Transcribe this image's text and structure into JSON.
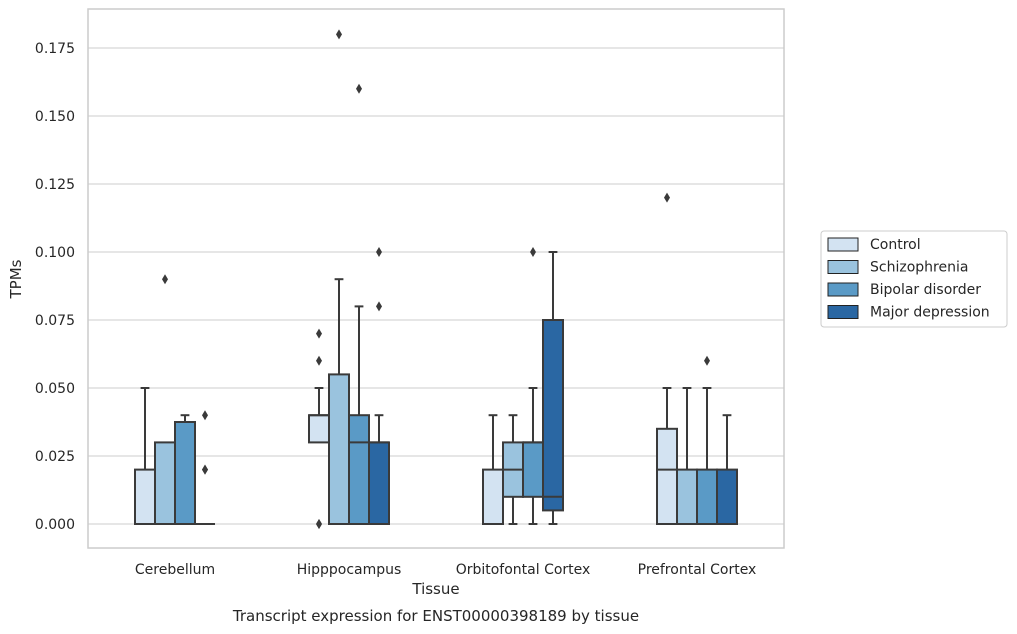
{
  "chart_data": {
    "type": "boxplot",
    "xlabel": "Tissue",
    "ylabel": "TPMs",
    "caption": "Transcript expression for ENST00000398189 by tissue",
    "ylim": [
      -0.0175,
      0.1925
    ],
    "yticks": [
      "0.000",
      "0.025",
      "0.050",
      "0.075",
      "0.100",
      "0.125",
      "0.150",
      "0.175"
    ],
    "ytick_values": [
      0,
      0.025,
      0.05,
      0.075,
      0.1,
      0.125,
      0.15,
      0.175
    ],
    "grid": "horizontal",
    "legend_position": "right",
    "categories": [
      "Cerebellum",
      "Hipppocampus",
      "Orbitofontal Cortex",
      "Prefrontal Cortex"
    ],
    "series": [
      {
        "name": "Control",
        "color": "#d3e3f2",
        "boxes": [
          {
            "whislo": 0,
            "q1": 0,
            "med": 0,
            "q3": 0.02,
            "whishi": 0.05,
            "fliers": []
          },
          {
            "whislo": 0.03,
            "q1": 0.03,
            "med": 0.04,
            "q3": 0.04,
            "whishi": 0.05,
            "fliers": [
              0.06,
              0.07,
              0,
              0
            ]
          },
          {
            "whislo": 0,
            "q1": 0,
            "med": 0,
            "q3": 0.02,
            "whishi": 0.04,
            "fliers": []
          },
          {
            "whislo": 0,
            "q1": 0,
            "med": 0.02,
            "q3": 0.035,
            "whishi": 0.05,
            "fliers": [
              0.12
            ]
          }
        ]
      },
      {
        "name": "Schizophrenia",
        "color": "#9ac3de",
        "boxes": [
          {
            "whislo": 0,
            "q1": 0,
            "med": 0,
            "q3": 0.03,
            "whishi": 0.03,
            "fliers": [
              0.09
            ]
          },
          {
            "whislo": 0,
            "q1": 0,
            "med": 0,
            "q3": 0.055,
            "whishi": 0.09,
            "fliers": [
              0.18
            ]
          },
          {
            "whislo": 0,
            "q1": 0.01,
            "med": 0.02,
            "q3": 0.03,
            "whishi": 0.04,
            "fliers": []
          },
          {
            "whislo": 0,
            "q1": 0,
            "med": 0,
            "q3": 0.02,
            "whishi": 0.05,
            "fliers": []
          }
        ]
      },
      {
        "name": "Bipolar disorder",
        "color": "#5a9ac6",
        "boxes": [
          {
            "whislo": 0,
            "q1": 0,
            "med": 0,
            "q3": 0.0375,
            "whishi": 0.04,
            "fliers": []
          },
          {
            "whislo": 0,
            "q1": 0,
            "med": 0.03,
            "q3": 0.04,
            "whishi": 0.08,
            "fliers": [
              0.16
            ]
          },
          {
            "whislo": 0,
            "q1": 0.01,
            "med": 0.03,
            "q3": 0.03,
            "whishi": 0.05,
            "fliers": [
              0.1
            ]
          },
          {
            "whislo": 0,
            "q1": 0,
            "med": 0,
            "q3": 0.02,
            "whishi": 0.05,
            "fliers": [
              0.06
            ]
          }
        ]
      },
      {
        "name": "Major depression",
        "color": "#2a67a3",
        "boxes": [
          {
            "whislo": 0,
            "q1": 0,
            "med": 0,
            "q3": 0,
            "whishi": 0,
            "fliers": [
              0.02,
              0.02,
              0.04
            ]
          },
          {
            "whislo": 0,
            "q1": 0,
            "med": 0.03,
            "q3": 0.03,
            "whishi": 0.04,
            "fliers": [
              0.08,
              0.1
            ]
          },
          {
            "whislo": 0,
            "q1": 0.005,
            "med": 0.01,
            "q3": 0.075,
            "whishi": 0.1,
            "fliers": []
          },
          {
            "whislo": 0,
            "q1": 0,
            "med": 0,
            "q3": 0.02,
            "whishi": 0.04,
            "fliers": []
          }
        ]
      }
    ]
  }
}
